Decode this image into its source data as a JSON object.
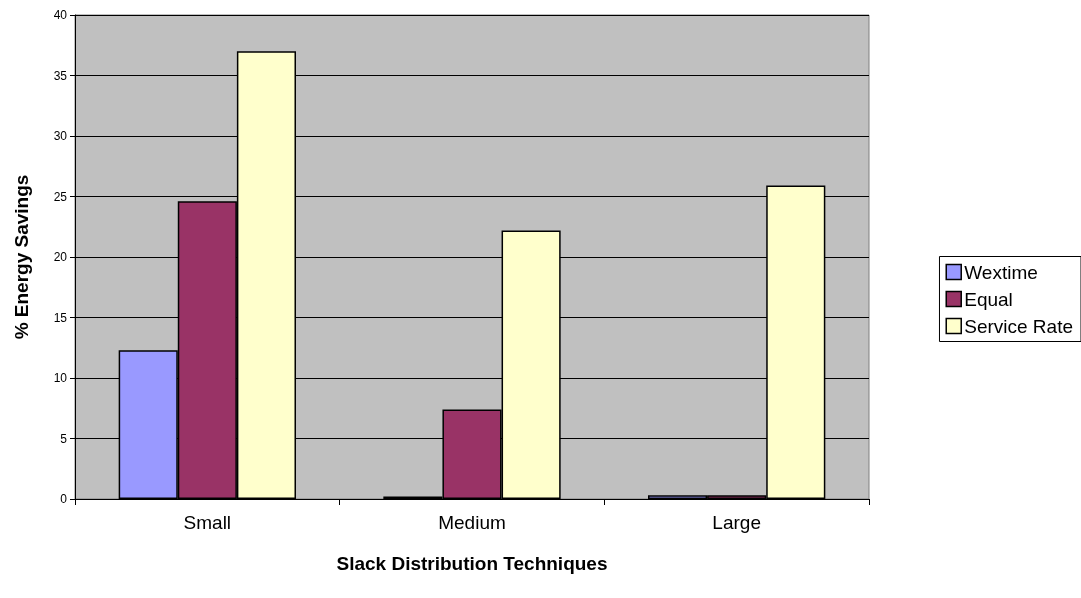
{
  "chart_data": {
    "type": "bar",
    "xlabel": "Slack Distribution Techniques",
    "ylabel": "% Energy Savings",
    "categories": [
      "Small",
      "Medium",
      "Large"
    ],
    "series": [
      {
        "name": "Wextime",
        "color": "#9999ff",
        "values": [
          12.3,
          0.2,
          0.3
        ]
      },
      {
        "name": "Equal",
        "color": "#993366",
        "values": [
          24.6,
          7.4,
          0.3
        ]
      },
      {
        "name": "Service Rate",
        "color": "#ffffcc",
        "values": [
          37.0,
          22.2,
          25.9
        ]
      }
    ],
    "ylim": [
      0,
      40
    ],
    "yticks": [
      0,
      5,
      10,
      15,
      20,
      25,
      30,
      35,
      40
    ],
    "grid": "y",
    "legend": "right"
  }
}
